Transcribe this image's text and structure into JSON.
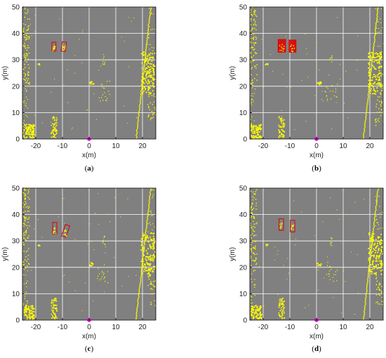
{
  "figure": {
    "background_color": "#808080",
    "grid_color": "#ffffff",
    "point_color": "#ffff00",
    "box_color": "#e00000",
    "marker_color": "#ff00ff"
  },
  "chart_data": [
    {
      "type": "scatter",
      "panel_label": "(a)",
      "xlabel": "x(m)",
      "ylabel": "y(m)",
      "xlim": [
        -25,
        25
      ],
      "ylim": [
        0,
        50
      ],
      "xticks": [
        -20,
        -10,
        0,
        10,
        20
      ],
      "yticks": [
        0,
        10,
        20,
        30,
        40,
        50
      ],
      "grid": true,
      "sensor_origin": [
        0,
        0
      ],
      "boxes": [
        {
          "cx": -13.2,
          "cy": 35.0,
          "w": 1.5,
          "h": 3.4,
          "angle": 0,
          "fill": false
        },
        {
          "cx": -9.5,
          "cy": 35.0,
          "w": 1.6,
          "h": 3.6,
          "angle": -8,
          "fill": false
        }
      ]
    },
    {
      "type": "scatter",
      "panel_label": "(b)",
      "xlabel": "x(m)",
      "ylabel": "y(m)",
      "xlim": [
        -25,
        25
      ],
      "ylim": [
        0,
        50
      ],
      "xticks": [
        -20,
        -10,
        0,
        10,
        20
      ],
      "yticks": [
        0,
        10,
        20,
        30,
        40,
        50
      ],
      "grid": true,
      "sensor_origin": [
        0,
        0
      ],
      "boxes": [
        {
          "cx": -13.0,
          "cy": 35.3,
          "w": 2.8,
          "h": 4.8,
          "angle": 0,
          "fill": true
        },
        {
          "cx": -9.0,
          "cy": 35.2,
          "w": 2.6,
          "h": 4.6,
          "angle": 0,
          "fill": true
        }
      ]
    },
    {
      "type": "scatter",
      "panel_label": "(c)",
      "xlabel": "x(m)",
      "ylabel": "y(m)",
      "xlim": [
        -25,
        25
      ],
      "ylim": [
        0,
        50
      ],
      "xticks": [
        -20,
        -10,
        0,
        10,
        20
      ],
      "yticks": [
        0,
        10,
        20,
        30,
        40,
        50
      ],
      "grid": true,
      "sensor_origin": [
        0,
        0
      ],
      "boxes": [
        {
          "cx": -12.9,
          "cy": 34.8,
          "w": 1.6,
          "h": 4.4,
          "angle": 0,
          "fill": false
        },
        {
          "cx": -8.8,
          "cy": 33.8,
          "w": 1.7,
          "h": 4.6,
          "angle": -20,
          "fill": false
        }
      ]
    },
    {
      "type": "scatter",
      "panel_label": "(d)",
      "xlabel": "x(m)",
      "ylabel": "y(m)",
      "xlim": [
        -25,
        25
      ],
      "ylim": [
        0,
        50
      ],
      "xticks": [
        -20,
        -10,
        0,
        10,
        20
      ],
      "yticks": [
        0,
        10,
        20,
        30,
        40,
        50
      ],
      "grid": true,
      "sensor_origin": [
        0,
        0
      ],
      "boxes": [
        {
          "cx": -13.2,
          "cy": 36.2,
          "w": 1.7,
          "h": 4.4,
          "angle": 0,
          "fill": false
        },
        {
          "cx": -9.0,
          "cy": 35.6,
          "w": 1.7,
          "h": 4.4,
          "angle": 0,
          "fill": false
        }
      ]
    }
  ]
}
